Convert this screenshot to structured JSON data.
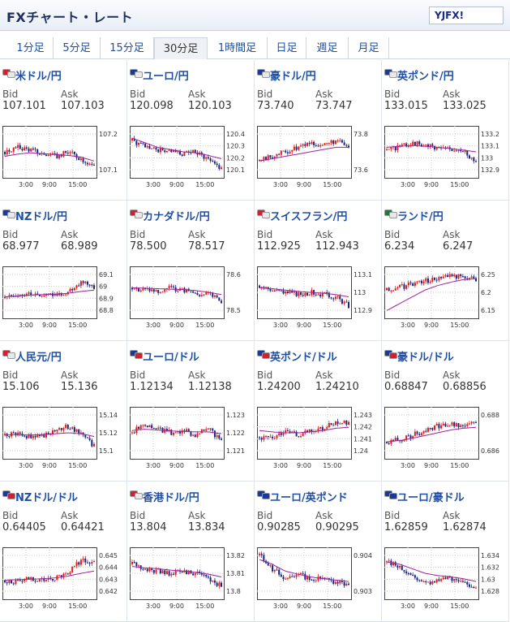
{
  "header": {
    "title": "FXチャート・レート",
    "logo": "YJFX!"
  },
  "tabs": [
    {
      "label": "1分足",
      "active": false
    },
    {
      "label": "5分足",
      "active": false
    },
    {
      "label": "15分足",
      "active": false
    },
    {
      "label": "30分足",
      "active": true
    },
    {
      "label": "1時間足",
      "active": false
    },
    {
      "label": "日足",
      "active": false
    },
    {
      "label": "週足",
      "active": false
    },
    {
      "label": "月足",
      "active": false
    }
  ],
  "labels": {
    "bid": "Bid",
    "ask": "Ask"
  },
  "colors": {
    "up": "#e21b1b",
    "down": "#1a237e",
    "ma": "#a020a0",
    "link": "#1f4fa5"
  },
  "pairs": [
    {
      "name": "米ドル/円",
      "bid": "107.101",
      "ask": "107.103",
      "flags": [
        "#cc2233",
        "#e8e8e8"
      ],
      "chart": {
        "ylabels": [
          "107.2",
          "107.1"
        ],
        "xlabels": [
          "3:00",
          "9:00",
          "15:00"
        ],
        "trend": [
          0.5,
          0.6,
          0.55,
          0.45,
          0.4,
          0.5,
          0.35,
          0.2
        ],
        "ma": [
          0.4,
          0.45,
          0.48,
          0.46,
          0.44,
          0.42,
          0.38,
          0.3
        ]
      }
    },
    {
      "name": "ユーロ/円",
      "bid": "120.098",
      "ask": "120.103",
      "flags": [
        "#1a3a99",
        "#e8e8e8"
      ],
      "chart": {
        "ylabels": [
          "120.4",
          "120.3",
          "120.2",
          "120.1"
        ],
        "xlabels": [
          "3:00",
          "9:00",
          "15:00"
        ],
        "trend": [
          0.75,
          0.6,
          0.55,
          0.5,
          0.45,
          0.5,
          0.35,
          0.15
        ],
        "ma": [
          0.8,
          0.7,
          0.6,
          0.55,
          0.5,
          0.48,
          0.42,
          0.35
        ]
      }
    },
    {
      "name": "豪ドル/円",
      "bid": "73.740",
      "ask": "73.747",
      "flags": [
        "#1a3a99",
        "#e8e8e8"
      ],
      "chart": {
        "ylabels": [
          "73.8",
          "73.6"
        ],
        "xlabels": [
          "3:00",
          "9:00",
          "15:00"
        ],
        "trend": [
          0.3,
          0.4,
          0.5,
          0.6,
          0.7,
          0.65,
          0.75,
          0.6
        ],
        "ma": [
          0.3,
          0.35,
          0.4,
          0.45,
          0.5,
          0.55,
          0.6,
          0.6
        ]
      }
    },
    {
      "name": "英ポンド/円",
      "bid": "133.015",
      "ask": "133.025",
      "flags": [
        "#1a3a99",
        "#e8e8e8"
      ],
      "chart": {
        "ylabels": [
          "133.2",
          "133.1",
          "133",
          "132.9"
        ],
        "xlabels": [
          "3:00",
          "9:00",
          "15:00"
        ],
        "trend": [
          0.55,
          0.6,
          0.7,
          0.65,
          0.6,
          0.55,
          0.5,
          0.3
        ],
        "ma": [
          0.6,
          0.62,
          0.64,
          0.62,
          0.6,
          0.57,
          0.54,
          0.5
        ]
      }
    },
    {
      "name": "NZドル/円",
      "bid": "68.977",
      "ask": "68.989",
      "flags": [
        "#1a3a99",
        "#e8e8e8"
      ],
      "chart": {
        "ylabels": [
          "69.1",
          "69",
          "68.9",
          "68.8"
        ],
        "xlabels": [
          "3:00",
          "9:00",
          "15:00"
        ],
        "trend": [
          0.4,
          0.45,
          0.5,
          0.4,
          0.45,
          0.5,
          0.75,
          0.6
        ],
        "ma": [
          0.4,
          0.42,
          0.44,
          0.45,
          0.46,
          0.48,
          0.52,
          0.55
        ]
      }
    },
    {
      "name": "カナダドル/円",
      "bid": "78.500",
      "ask": "78.517",
      "flags": [
        "#cc2233",
        "#e8e8e8"
      ],
      "chart": {
        "ylabels": [
          "78.6",
          "78.5"
        ],
        "xlabels": [
          "3:00",
          "9:00",
          "15:00"
        ],
        "trend": [
          0.6,
          0.55,
          0.5,
          0.6,
          0.55,
          0.45,
          0.5,
          0.3
        ],
        "ma": [
          0.6,
          0.59,
          0.58,
          0.57,
          0.56,
          0.54,
          0.5,
          0.45
        ]
      }
    },
    {
      "name": "スイスフラン/円",
      "bid": "112.925",
      "ask": "112.943",
      "flags": [
        "#cc2233",
        "#e8e8e8"
      ],
      "chart": {
        "ylabels": [
          "113.1",
          "113",
          "112.9"
        ],
        "xlabels": [
          "3:00",
          "9:00",
          "15:00"
        ],
        "trend": [
          0.65,
          0.55,
          0.5,
          0.45,
          0.5,
          0.45,
          0.4,
          0.2
        ],
        "ma": [
          0.6,
          0.58,
          0.55,
          0.52,
          0.5,
          0.48,
          0.45,
          0.4
        ]
      }
    },
    {
      "name": "ランド/円",
      "bid": "6.234",
      "ask": "6.247",
      "flags": [
        "#1a7a3a",
        "#e8e8e8"
      ],
      "chart": {
        "ylabels": [
          "6.25",
          "6.2",
          "6.15"
        ],
        "xlabels": [
          "3:00",
          "9:00",
          "15:00"
        ],
        "trend": [
          0.55,
          0.6,
          0.7,
          0.75,
          0.8,
          0.85,
          0.85,
          0.8
        ],
        "ma": [
          0.1,
          0.25,
          0.4,
          0.55,
          0.65,
          0.72,
          0.78,
          0.8
        ]
      }
    },
    {
      "name": "人民元/円",
      "bid": "15.106",
      "ask": "15.136",
      "flags": [
        "#cc2233",
        "#e8e8e8"
      ],
      "chart": {
        "ylabels": [
          "15.14",
          "15.12",
          "15.1"
        ],
        "xlabels": [
          "3:00",
          "9:00",
          "15:00"
        ],
        "trend": [
          0.45,
          0.5,
          0.4,
          0.45,
          0.55,
          0.65,
          0.5,
          0.2
        ],
        "ma": [
          0.45,
          0.46,
          0.45,
          0.46,
          0.48,
          0.5,
          0.48,
          0.42
        ]
      }
    },
    {
      "name": "ユーロ/ドル",
      "bid": "1.12134",
      "ask": "1.12138",
      "flags": [
        "#1a3a99",
        "#cc2233"
      ],
      "chart": {
        "ylabels": [
          "1.123",
          "1.122",
          "1.121"
        ],
        "xlabels": [
          "3:00",
          "9:00",
          "15:00"
        ],
        "trend": [
          0.5,
          0.7,
          0.6,
          0.5,
          0.55,
          0.45,
          0.6,
          0.3
        ],
        "ma": [
          0.55,
          0.58,
          0.56,
          0.54,
          0.53,
          0.52,
          0.52,
          0.48
        ]
      }
    },
    {
      "name": "英ポンド/ドル",
      "bid": "1.24200",
      "ask": "1.24210",
      "flags": [
        "#1a3a99",
        "#cc2233"
      ],
      "chart": {
        "ylabels": [
          "1.243",
          "1.242",
          "1.241",
          "1.24"
        ],
        "xlabels": [
          "3:00",
          "9:00",
          "15:00"
        ],
        "trend": [
          0.4,
          0.35,
          0.5,
          0.45,
          0.55,
          0.6,
          0.75,
          0.7
        ],
        "ma": [
          0.55,
          0.52,
          0.5,
          0.5,
          0.52,
          0.55,
          0.6,
          0.62
        ]
      }
    },
    {
      "name": "豪ドル/ドル",
      "bid": "0.68847",
      "ask": "0.68856",
      "flags": [
        "#1a3a99",
        "#cc2233"
      ],
      "chart": {
        "ylabels": [
          "0.688",
          "0.686"
        ],
        "xlabels": [
          "3:00",
          "9:00",
          "15:00"
        ],
        "trend": [
          0.3,
          0.35,
          0.45,
          0.55,
          0.65,
          0.7,
          0.65,
          0.7
        ],
        "ma": [
          0.3,
          0.33,
          0.38,
          0.44,
          0.5,
          0.56,
          0.6,
          0.62
        ]
      }
    },
    {
      "name": "NZドル/ドル",
      "bid": "0.64405",
      "ask": "0.64421",
      "flags": [
        "#1a3a99",
        "#cc2233"
      ],
      "chart": {
        "ylabels": [
          "0.645",
          "0.644",
          "0.643",
          "0.642"
        ],
        "xlabels": [
          "3:00",
          "9:00",
          "15:00"
        ],
        "trend": [
          0.35,
          0.3,
          0.4,
          0.35,
          0.4,
          0.5,
          0.8,
          0.75
        ],
        "ma": [
          0.35,
          0.36,
          0.37,
          0.38,
          0.4,
          0.44,
          0.5,
          0.55
        ]
      }
    },
    {
      "name": "香港ドル/円",
      "bid": "13.804",
      "ask": "13.834",
      "flags": [
        "#cc2233",
        "#e8e8e8"
      ],
      "chart": {
        "ylabels": [
          "13.82",
          "13.81",
          "13.8"
        ],
        "xlabels": [
          "3:00",
          "9:00",
          "15:00"
        ],
        "trend": [
          0.7,
          0.6,
          0.55,
          0.5,
          0.55,
          0.5,
          0.4,
          0.2
        ],
        "ma": [
          0.65,
          0.62,
          0.6,
          0.57,
          0.55,
          0.52,
          0.48,
          0.42
        ]
      }
    },
    {
      "name": "ユーロ/英ポンド",
      "bid": "0.90285",
      "ask": "0.90295",
      "flags": [
        "#1a3a99",
        "#1a3a99"
      ],
      "chart": {
        "ylabels": [
          "0.904",
          "0.903"
        ],
        "xlabels": [
          "3:00",
          "9:00",
          "15:00"
        ],
        "trend": [
          0.9,
          0.6,
          0.4,
          0.5,
          0.35,
          0.4,
          0.3,
          0.25
        ],
        "ma": [
          0.8,
          0.7,
          0.55,
          0.48,
          0.42,
          0.38,
          0.35,
          0.32
        ]
      }
    },
    {
      "name": "ユーロ/豪ドル",
      "bid": "1.62859",
      "ask": "1.62874",
      "flags": [
        "#1a3a99",
        "#1a3a99"
      ],
      "chart": {
        "ylabels": [
          "1.634",
          "1.632",
          "1.63",
          "1.628"
        ],
        "xlabels": [
          "3:00",
          "9:00",
          "15:00"
        ],
        "trend": [
          0.75,
          0.65,
          0.45,
          0.3,
          0.35,
          0.4,
          0.3,
          0.2
        ],
        "ma": [
          0.75,
          0.7,
          0.6,
          0.5,
          0.45,
          0.42,
          0.38,
          0.32
        ]
      }
    }
  ]
}
